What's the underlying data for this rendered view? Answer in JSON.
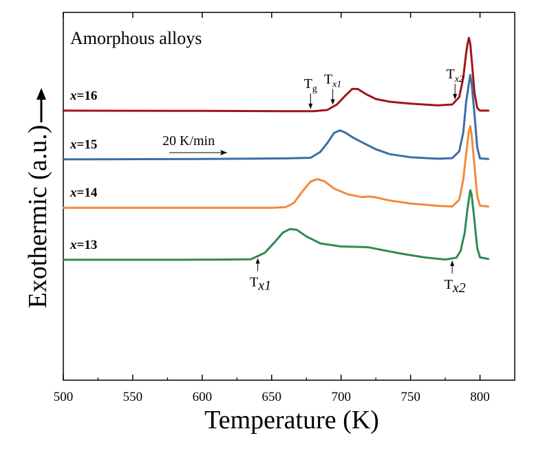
{
  "chart_data": {
    "type": "line",
    "title": "Amorphous alloys",
    "xlabel": "Temperature (K)",
    "ylabel": "Exothermic (a.u.)",
    "xlim": [
      500,
      825
    ],
    "ylim": [
      0,
      100
    ],
    "xticks": [
      500,
      550,
      600,
      650,
      700,
      750,
      800
    ],
    "grid": false,
    "yticks_shown": false,
    "rate_label": "20 K/min",
    "colors": {
      "x=16": "#a11418",
      "x=15": "#3a6ea5",
      "x=14": "#f28a3c",
      "x=13": "#2f8a51"
    },
    "series": [
      {
        "name": "x=16",
        "prefix": "x",
        "suffix": "=16",
        "points": [
          [
            500,
            76.1
          ],
          [
            600,
            76.0
          ],
          [
            660,
            75.9
          ],
          [
            680,
            75.9
          ],
          [
            690,
            76.3
          ],
          [
            697,
            78.1
          ],
          [
            703,
            81.0
          ],
          [
            708,
            83.2
          ],
          [
            712,
            83.2
          ],
          [
            718,
            81.5
          ],
          [
            725,
            79.9
          ],
          [
            735,
            79.0
          ],
          [
            750,
            78.4
          ],
          [
            770,
            77.8
          ],
          [
            780,
            78.1
          ],
          [
            785,
            80.5
          ],
          [
            788,
            87.0
          ],
          [
            790,
            95.0
          ],
          [
            791,
            98.0
          ],
          [
            792,
            100.0
          ],
          [
            793,
            98.0
          ],
          [
            794,
            93.0
          ],
          [
            796,
            82.0
          ],
          [
            798,
            77.0
          ],
          [
            800,
            76.1
          ],
          [
            806,
            76.1
          ]
        ]
      },
      {
        "name": "x=15",
        "prefix": "x",
        "suffix": "=15",
        "points": [
          [
            500,
            60.1
          ],
          [
            600,
            60.2
          ],
          [
            660,
            60.4
          ],
          [
            678,
            60.6
          ],
          [
            685,
            62.5
          ],
          [
            690,
            65.4
          ],
          [
            695,
            68.8
          ],
          [
            699,
            69.6
          ],
          [
            703,
            68.9
          ],
          [
            708,
            67.4
          ],
          [
            715,
            65.7
          ],
          [
            725,
            63.4
          ],
          [
            735,
            61.8
          ],
          [
            750,
            60.8
          ],
          [
            770,
            60.3
          ],
          [
            780,
            60.5
          ],
          [
            785,
            62.7
          ],
          [
            788,
            69.0
          ],
          [
            790,
            79.0
          ],
          [
            792,
            85.0
          ],
          [
            793,
            87.8
          ],
          [
            794,
            85.0
          ],
          [
            796,
            75.0
          ],
          [
            798,
            64.0
          ],
          [
            800,
            60.4
          ],
          [
            806,
            60.2
          ]
        ]
      },
      {
        "name": "x=14",
        "prefix": "x",
        "suffix": "=14",
        "points": [
          [
            500,
            44.2
          ],
          [
            600,
            44.2
          ],
          [
            650,
            44.2
          ],
          [
            660,
            44.4
          ],
          [
            666,
            45.8
          ],
          [
            672,
            49.5
          ],
          [
            678,
            52.8
          ],
          [
            683,
            53.6
          ],
          [
            688,
            52.9
          ],
          [
            695,
            50.5
          ],
          [
            705,
            48.6
          ],
          [
            715,
            47.7
          ],
          [
            720,
            47.9
          ],
          [
            725,
            47.6
          ],
          [
            735,
            46.6
          ],
          [
            750,
            45.6
          ],
          [
            770,
            44.8
          ],
          [
            780,
            44.6
          ],
          [
            785,
            46.8
          ],
          [
            788,
            53.5
          ],
          [
            790,
            62.0
          ],
          [
            792,
            69.5
          ],
          [
            793,
            71.0
          ],
          [
            794,
            68.0
          ],
          [
            796,
            58.0
          ],
          [
            798,
            48.0
          ],
          [
            800,
            44.9
          ],
          [
            806,
            44.6
          ]
        ]
      },
      {
        "name": "x=13",
        "prefix": "x",
        "suffix": "=13",
        "points": [
          [
            500,
            27.1
          ],
          [
            580,
            27.1
          ],
          [
            620,
            27.2
          ],
          [
            635,
            27.3
          ],
          [
            645,
            29.4
          ],
          [
            652,
            32.8
          ],
          [
            658,
            36.0
          ],
          [
            663,
            37.2
          ],
          [
            668,
            37.0
          ],
          [
            675,
            34.8
          ],
          [
            685,
            32.5
          ],
          [
            700,
            31.5
          ],
          [
            715,
            31.3
          ],
          [
            720,
            31.2
          ],
          [
            730,
            30.3
          ],
          [
            745,
            29.0
          ],
          [
            760,
            27.9
          ],
          [
            775,
            27.2
          ],
          [
            783,
            27.8
          ],
          [
            786,
            30.0
          ],
          [
            789,
            36.0
          ],
          [
            791,
            44.0
          ],
          [
            793,
            50.0
          ],
          [
            794,
            48.5
          ],
          [
            796,
            40.0
          ],
          [
            798,
            31.0
          ],
          [
            800,
            27.9
          ],
          [
            806,
            27.4
          ]
        ]
      }
    ],
    "markers": [
      {
        "id": "tg-16",
        "x": 678,
        "label": "T",
        "sub": "g"
      },
      {
        "id": "tx1-16",
        "x": 694,
        "label": "T",
        "sub": "x1"
      },
      {
        "id": "tx2-16",
        "x": 782,
        "label": "T",
        "sub": "x2"
      },
      {
        "id": "tx1-13",
        "x": 640,
        "label": "T",
        "sub": "x1"
      },
      {
        "id": "tx2-13",
        "x": 780,
        "label": "T",
        "sub": "x2"
      }
    ]
  }
}
